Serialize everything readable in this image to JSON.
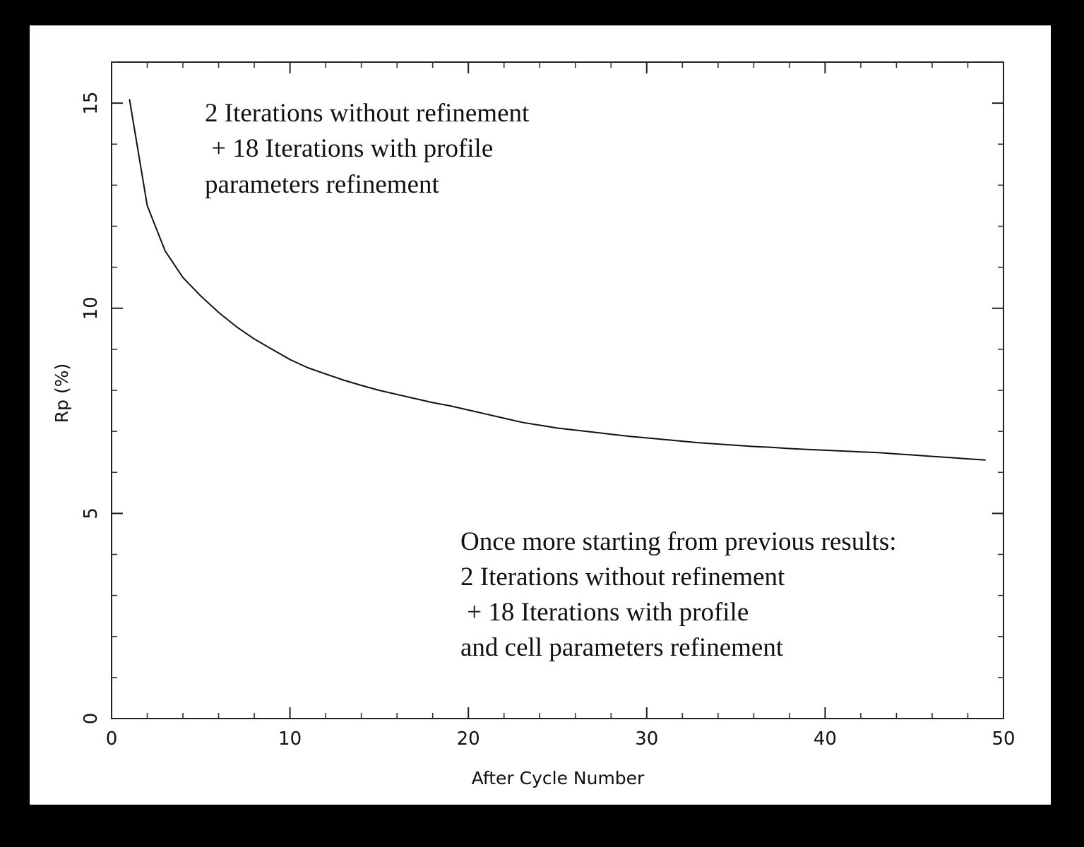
{
  "chart_data": {
    "type": "line",
    "title": "",
    "xlabel": "After Cycle Number",
    "ylabel": "Rp (%)",
    "xlim": [
      0,
      50
    ],
    "ylim": [
      0,
      16
    ],
    "xticks": [
      0,
      10,
      20,
      30,
      40,
      50
    ],
    "xtick_labels": [
      "0",
      "10",
      "20",
      "30",
      "40",
      "50"
    ],
    "yticks": [
      0,
      5,
      10,
      15
    ],
    "ytick_labels": [
      "0",
      "5",
      "10",
      "15"
    ],
    "x_minor_step": 2,
    "y_minor_step": 1,
    "grid": false,
    "legend": "none",
    "line_color": "#111111",
    "series": [
      {
        "x": [
          1,
          2,
          3,
          4,
          5,
          6,
          7,
          8,
          9,
          10,
          11,
          12,
          13,
          14,
          15,
          16,
          17,
          18,
          19,
          20,
          21,
          22,
          23,
          24,
          25,
          26,
          27,
          28,
          29,
          30,
          31,
          32,
          33,
          34,
          35,
          36,
          37,
          38,
          39,
          40,
          41,
          42,
          43,
          44,
          45,
          46,
          47,
          48,
          49
        ],
        "y": [
          15.1,
          12.5,
          11.4,
          10.75,
          10.3,
          9.9,
          9.55,
          9.25,
          9.0,
          8.75,
          8.55,
          8.4,
          8.25,
          8.12,
          8.0,
          7.9,
          7.8,
          7.7,
          7.62,
          7.52,
          7.42,
          7.32,
          7.22,
          7.15,
          7.08,
          7.03,
          6.98,
          6.93,
          6.88,
          6.84,
          6.8,
          6.76,
          6.72,
          6.69,
          6.66,
          6.63,
          6.61,
          6.58,
          6.56,
          6.54,
          6.52,
          6.5,
          6.48,
          6.45,
          6.42,
          6.39,
          6.36,
          6.33,
          6.3
        ]
      }
    ],
    "annotations": [
      {
        "lines": [
          "2 Iterations without refinement",
          " + 18 Iterations with profile",
          "parameters refinement"
        ]
      },
      {
        "lines": [
          "Once more starting from previous results:",
          "2 Iterations without refinement",
          " + 18 Iterations with profile",
          "and cell parameters refinement"
        ]
      }
    ]
  }
}
